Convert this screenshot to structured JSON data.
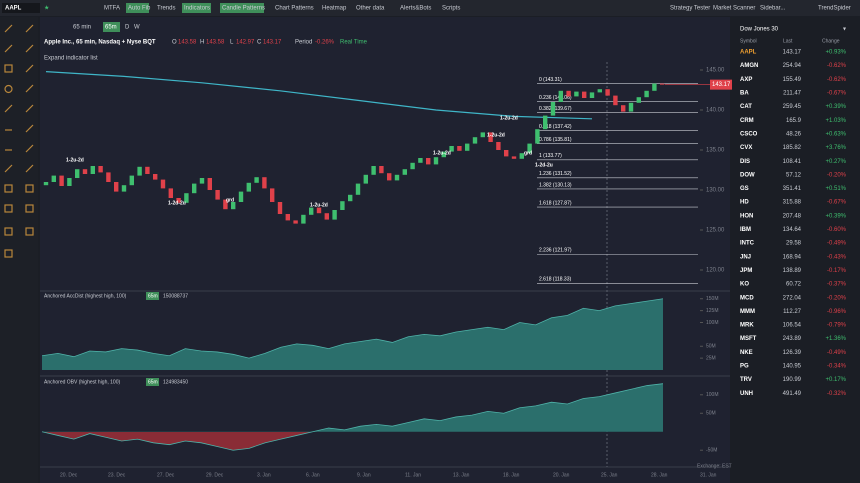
{
  "toolbar": {
    "symbol": "AAPL",
    "buttons": [
      {
        "text": "MTFA",
        "active": false
      },
      {
        "text": "Auto Fib",
        "active": true
      },
      {
        "text": "Trends",
        "active": false
      },
      {
        "text": "Indicators",
        "active": true
      },
      {
        "text": "Candle Patterns",
        "active": true
      },
      {
        "text": "Chart Patterns",
        "active": false
      },
      {
        "text": "Heatmap",
        "active": false
      },
      {
        "text": "Other data",
        "active": false
      },
      {
        "text": "Alerts&Bots",
        "active": false
      },
      {
        "text": "Scripts",
        "active": false
      }
    ],
    "right": [
      "Strategy Tester",
      "Market Scanner",
      "Sidebar...",
      "TrendSpider"
    ]
  },
  "chart_toolbar": {
    "interval": "65 min",
    "active": "65m",
    "others": [
      "D",
      "W"
    ]
  },
  "legend": {
    "name": "Apple Inc., 65 min, Nasdaq + Nyse BQT",
    "o_label": "O",
    "o": 143.58,
    "h_label": "H",
    "h": 143.58,
    "l_label": "L",
    "l": 142.97,
    "c_label": "C",
    "c": 143.17,
    "period_label": "Period",
    "period": "-0.26%",
    "realtime": "Real Time"
  },
  "expand": "Expand indicator list",
  "chart_data": [
    {
      "type": "candlestick",
      "first_open": 130.6,
      "close": [
        131.0,
        131.8,
        130.5,
        131.5,
        132.6,
        132.0,
        133.0,
        132.2,
        131.0,
        129.8,
        130.6,
        131.8,
        132.9,
        132.0,
        131.3,
        130.2,
        129.0,
        128.4,
        129.6,
        130.8,
        131.5,
        130.0,
        128.8,
        127.6,
        128.5,
        129.8,
        130.9,
        131.6,
        130.2,
        128.5,
        127.0,
        126.2,
        125.8,
        126.9,
        127.8,
        127.1,
        126.3,
        127.5,
        128.6,
        129.4,
        130.8,
        131.9,
        133.0,
        132.1,
        131.2,
        131.9,
        132.6,
        133.4,
        134.0,
        133.2,
        134.1,
        134.8,
        135.5,
        134.9,
        135.8,
        136.6,
        137.2,
        136.0,
        135.0,
        134.2,
        133.9,
        134.6,
        135.8,
        137.6,
        139.3,
        141.0,
        142.4,
        141.7,
        142.3,
        141.5,
        142.2,
        142.6,
        141.8,
        140.6,
        139.8,
        140.9,
        141.6,
        142.4,
        143.3,
        143.17
      ],
      "up_color": "#3fbf6f",
      "down_color": "#e0414a",
      "ma_x": [
        0,
        10,
        20,
        30,
        40,
        50,
        60,
        70
      ],
      "ma_values": [
        144.8,
        144.2,
        143.4,
        142.4,
        141.2,
        140.0,
        139.2,
        138.9
      ],
      "ma_color": "#3fb6c8",
      "fib": [
        {
          "label": "0 (143.31)",
          "price": 143.31
        },
        {
          "label": "0.236 (141.06)",
          "price": 141.06
        },
        {
          "label": "0.382 (139.67)",
          "price": 139.67
        },
        {
          "label": "0.618 (137.42)",
          "price": 137.42
        },
        {
          "label": "0.786 (135.81)",
          "price": 135.81
        },
        {
          "label": "1 (133.77)",
          "price": 133.77
        },
        {
          "label": "1.236 (131.52)",
          "price": 131.52
        },
        {
          "label": "1.382 (130.13)",
          "price": 130.13
        },
        {
          "label": "1.618 (127.87)",
          "price": 127.87
        },
        {
          "label": "2.236 (121.97)",
          "price": 121.97
        },
        {
          "label": "2.618 (118.33)",
          "price": 118.33
        }
      ],
      "last_price": 143.17,
      "annotations": [
        "1-2u-2d",
        "1-2d-2u",
        "grd",
        "1-2u-2d",
        "1-2u-2d",
        "1-2u-2d",
        "1-2u-2d",
        "grd",
        "1-2d-2u"
      ],
      "ylim": [
        117.5,
        146
      ],
      "yticks": [
        {
          "value": 145,
          "label": "145.00"
        },
        {
          "value": 140,
          "label": "140.00"
        },
        {
          "value": 135,
          "label": "135.00"
        },
        {
          "value": 130,
          "label": "130.00"
        },
        {
          "value": 125,
          "label": "125.00"
        },
        {
          "value": 120,
          "label": "120.00"
        }
      ],
      "date_labels": [
        "20. Dec",
        "23. Dec",
        "27. Dec",
        "29. Dec",
        "3. Jan",
        "6. Jan",
        "9. Jan",
        "11. Jan",
        "13. Jan",
        "18. Jan",
        "20. Jan",
        "25. Jan",
        "28. Jan",
        "31. Jan"
      ],
      "timezone": "Exchange: EST"
    },
    {
      "type": "area",
      "title": "Anchored AccDist (highest high, 100)",
      "badge": "65m",
      "last": 150088737,
      "values": [
        30,
        35,
        28,
        40,
        38,
        45,
        42,
        35,
        30,
        45,
        40,
        38,
        33,
        25,
        35,
        48,
        55,
        52,
        45,
        55,
        60,
        65,
        58,
        70,
        75,
        72,
        80,
        85,
        90,
        85,
        100,
        95,
        110,
        115,
        130,
        125,
        135,
        140,
        145,
        150
      ],
      "color": "#2b6f6c",
      "line_color": "#4fb3a9",
      "ylim": [
        0,
        160
      ],
      "yticks": [
        {
          "value": 150,
          "label": "150M"
        },
        {
          "value": 125,
          "label": "125M"
        },
        {
          "value": 100,
          "label": "100M"
        },
        {
          "value": 50,
          "label": "50M"
        },
        {
          "value": 25,
          "label": "25M"
        }
      ]
    },
    {
      "type": "area",
      "title": "Anchored OBV (highest high, 100)",
      "badge": "65m",
      "last": 124983450,
      "values": [
        0,
        -10,
        -20,
        -5,
        -15,
        -25,
        -20,
        -30,
        -35,
        -25,
        -30,
        -40,
        -50,
        -45,
        -30,
        -20,
        -10,
        0,
        10,
        5,
        15,
        20,
        15,
        25,
        35,
        30,
        40,
        45,
        55,
        50,
        65,
        70,
        80,
        75,
        90,
        95,
        105,
        115,
        125,
        130
      ],
      "color": "#2b6f6c",
      "negative_color": "#8a2c36",
      "line_color": "#4fb3a9",
      "ylim": [
        -90,
        140
      ],
      "yticks": [
        {
          "value": 100,
          "label": "100M"
        },
        {
          "value": 50,
          "label": "50M"
        },
        {
          "value": -50,
          "label": "-50M"
        }
      ]
    }
  ],
  "watchlist": {
    "title": "Dow Jones 30",
    "columns": [
      "Symbol",
      "Last",
      "Change"
    ],
    "rows": [
      [
        "AAPL",
        143.17,
        "+0.93%"
      ],
      [
        "AMGN",
        254.94,
        "-0.62%"
      ],
      [
        "AXP",
        155.49,
        "-0.62%"
      ],
      [
        "BA",
        211.47,
        "-0.67%"
      ],
      [
        "CAT",
        259.45,
        "+0.39%"
      ],
      [
        "CRM",
        165.9,
        "+1.03%"
      ],
      [
        "CSCO",
        48.26,
        "+0.63%"
      ],
      [
        "CVX",
        185.82,
        "+3.76%"
      ],
      [
        "DIS",
        108.41,
        "+0.27%"
      ],
      [
        "DOW",
        57.12,
        "-0.20%"
      ],
      [
        "GS",
        351.41,
        "+0.51%"
      ],
      [
        "HD",
        315.88,
        "-0.67%"
      ],
      [
        "HON",
        207.48,
        "+0.39%"
      ],
      [
        "IBM",
        134.64,
        "-0.60%"
      ],
      [
        "INTC",
        29.58,
        "-0.49%"
      ],
      [
        "JNJ",
        168.94,
        "-0.43%"
      ],
      [
        "JPM",
        138.89,
        "-0.17%"
      ],
      [
        "KO",
        60.72,
        "-0.37%"
      ],
      [
        "MCD",
        272.04,
        "-0.20%"
      ],
      [
        "MMM",
        112.27,
        "-0.96%"
      ],
      [
        "MRK",
        106.54,
        "-0.79%"
      ],
      [
        "MSFT",
        243.89,
        "+1.36%"
      ],
      [
        "NKE",
        126.39,
        "-0.49%"
      ],
      [
        "PG",
        140.95,
        "-0.34%"
      ],
      [
        "TRV",
        190.99,
        "+0.17%"
      ],
      [
        "UNH",
        491.49,
        "-0.32%"
      ]
    ]
  }
}
